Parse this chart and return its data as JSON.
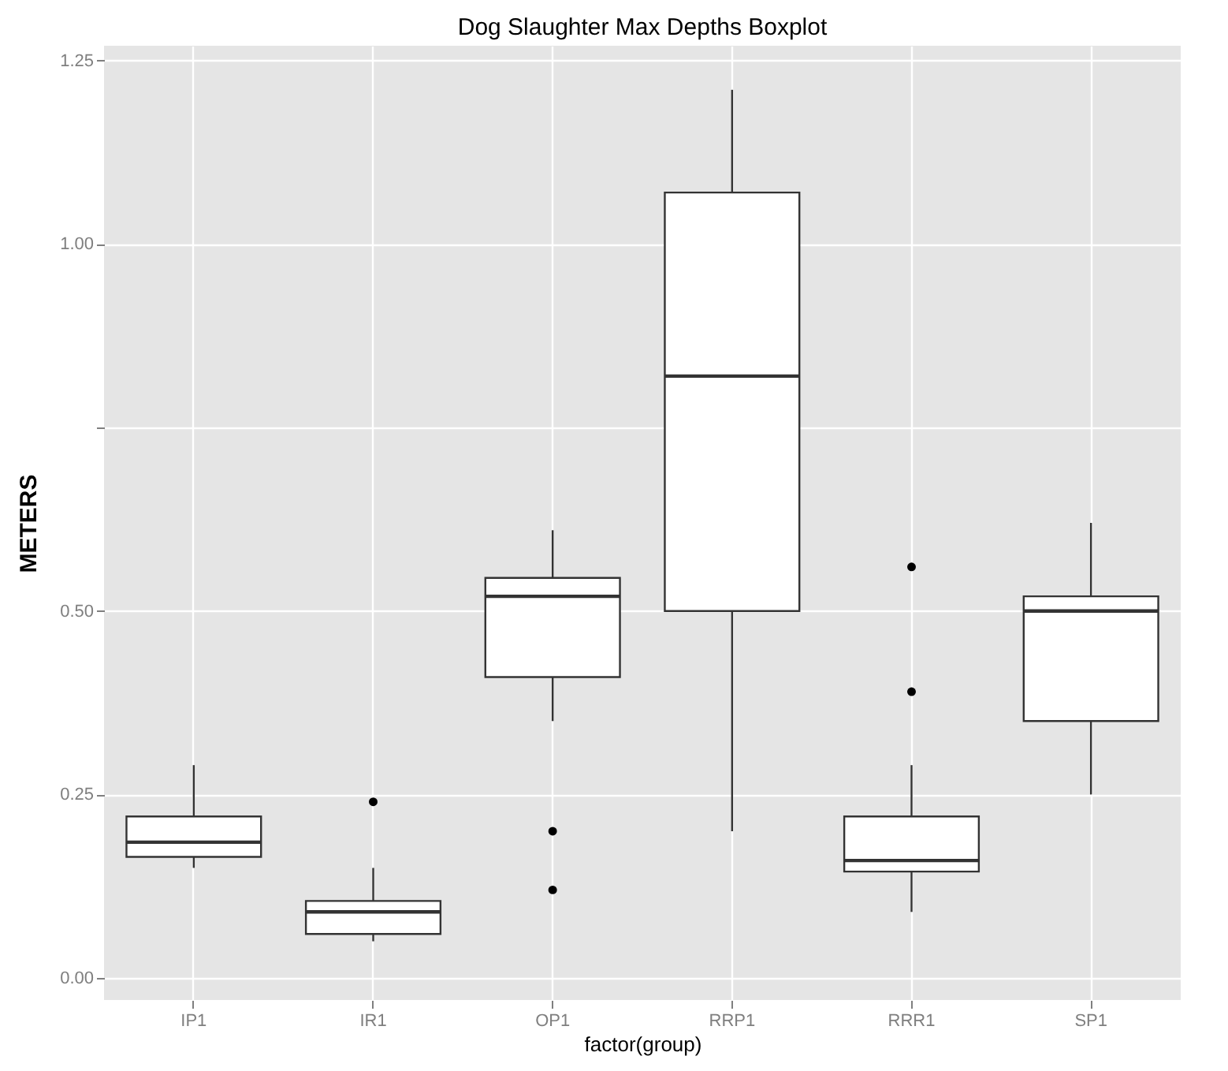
{
  "chart_data": {
    "type": "box",
    "title": "Dog Slaughter Max Depths Boxplot",
    "xlabel": "factor(group)",
    "ylabel": "METERS",
    "categories": [
      "IP1",
      "IR1",
      "OP1",
      "RRP1",
      "RRR1",
      "SP1"
    ],
    "boxes": [
      {
        "low": 0.15,
        "q1": 0.165,
        "median": 0.185,
        "q3": 0.22,
        "high": 0.29
      },
      {
        "low": 0.05,
        "q1": 0.06,
        "median": 0.09,
        "q3": 0.105,
        "high": 0.15,
        "outliers": [
          0.24
        ]
      },
      {
        "low": 0.35,
        "q1": 0.41,
        "median": 0.52,
        "q3": 0.545,
        "high": 0.61,
        "outliers": [
          0.2,
          0.12
        ]
      },
      {
        "low": 0.2,
        "q1": 0.5,
        "median": 0.82,
        "q3": 1.07,
        "high": 1.21
      },
      {
        "low": 0.09,
        "q1": 0.145,
        "median": 0.16,
        "q3": 0.22,
        "high": 0.29,
        "outliers": [
          0.56,
          0.39
        ]
      },
      {
        "low": 0.25,
        "q1": 0.35,
        "median": 0.5,
        "q3": 0.52,
        "high": 0.62
      }
    ],
    "ylim": [
      -0.03,
      1.27
    ],
    "yticks": [
      {
        "value": 0,
        "label": "0.00"
      },
      0.25,
      {
        "value": 0.5,
        "label": "0.50"
      },
      {
        "value": 0.75,
        "label": null
      },
      {
        "value": 1,
        "label": "1.00"
      },
      1.25
    ],
    "grid": true
  }
}
